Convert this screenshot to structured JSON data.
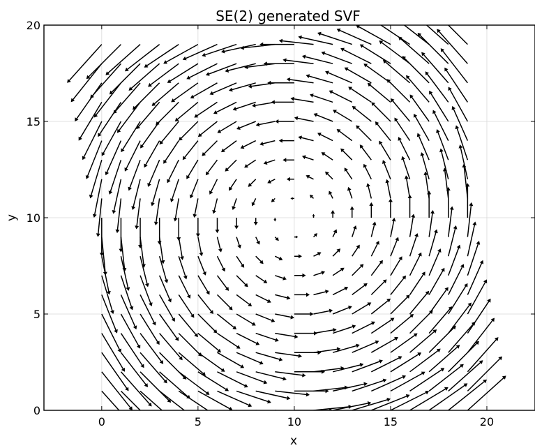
{
  "chart_data": {
    "type": "quiver",
    "title": "SE(2) generated SVF",
    "xlabel": "x",
    "ylabel": "y",
    "xlim": [
      -3,
      22.5
    ],
    "ylim": [
      0,
      20
    ],
    "xticks": [
      0,
      5,
      10,
      15,
      20
    ],
    "yticks": [
      0,
      5,
      10,
      15,
      20
    ],
    "xtick_labels": [
      "0",
      "5",
      "10",
      "15",
      "20"
    ],
    "ytick_labels": [
      "0",
      "5",
      "10",
      "15",
      "20"
    ],
    "grid": true,
    "field": {
      "generator": "SE(2) rotation",
      "rotation_center": [
        10,
        10
      ],
      "direction": "counter-clockwise",
      "grid_x": [
        0,
        1,
        2,
        3,
        4,
        5,
        6,
        7,
        8,
        9,
        10,
        11,
        12,
        13,
        14,
        15,
        16,
        17,
        18,
        19
      ],
      "grid_y": [
        0,
        1,
        2,
        3,
        4,
        5,
        6,
        7,
        8,
        9,
        10,
        11,
        12,
        13,
        14,
        15,
        16,
        17,
        18,
        19
      ]
    },
    "arrow_color": "#000000"
  }
}
